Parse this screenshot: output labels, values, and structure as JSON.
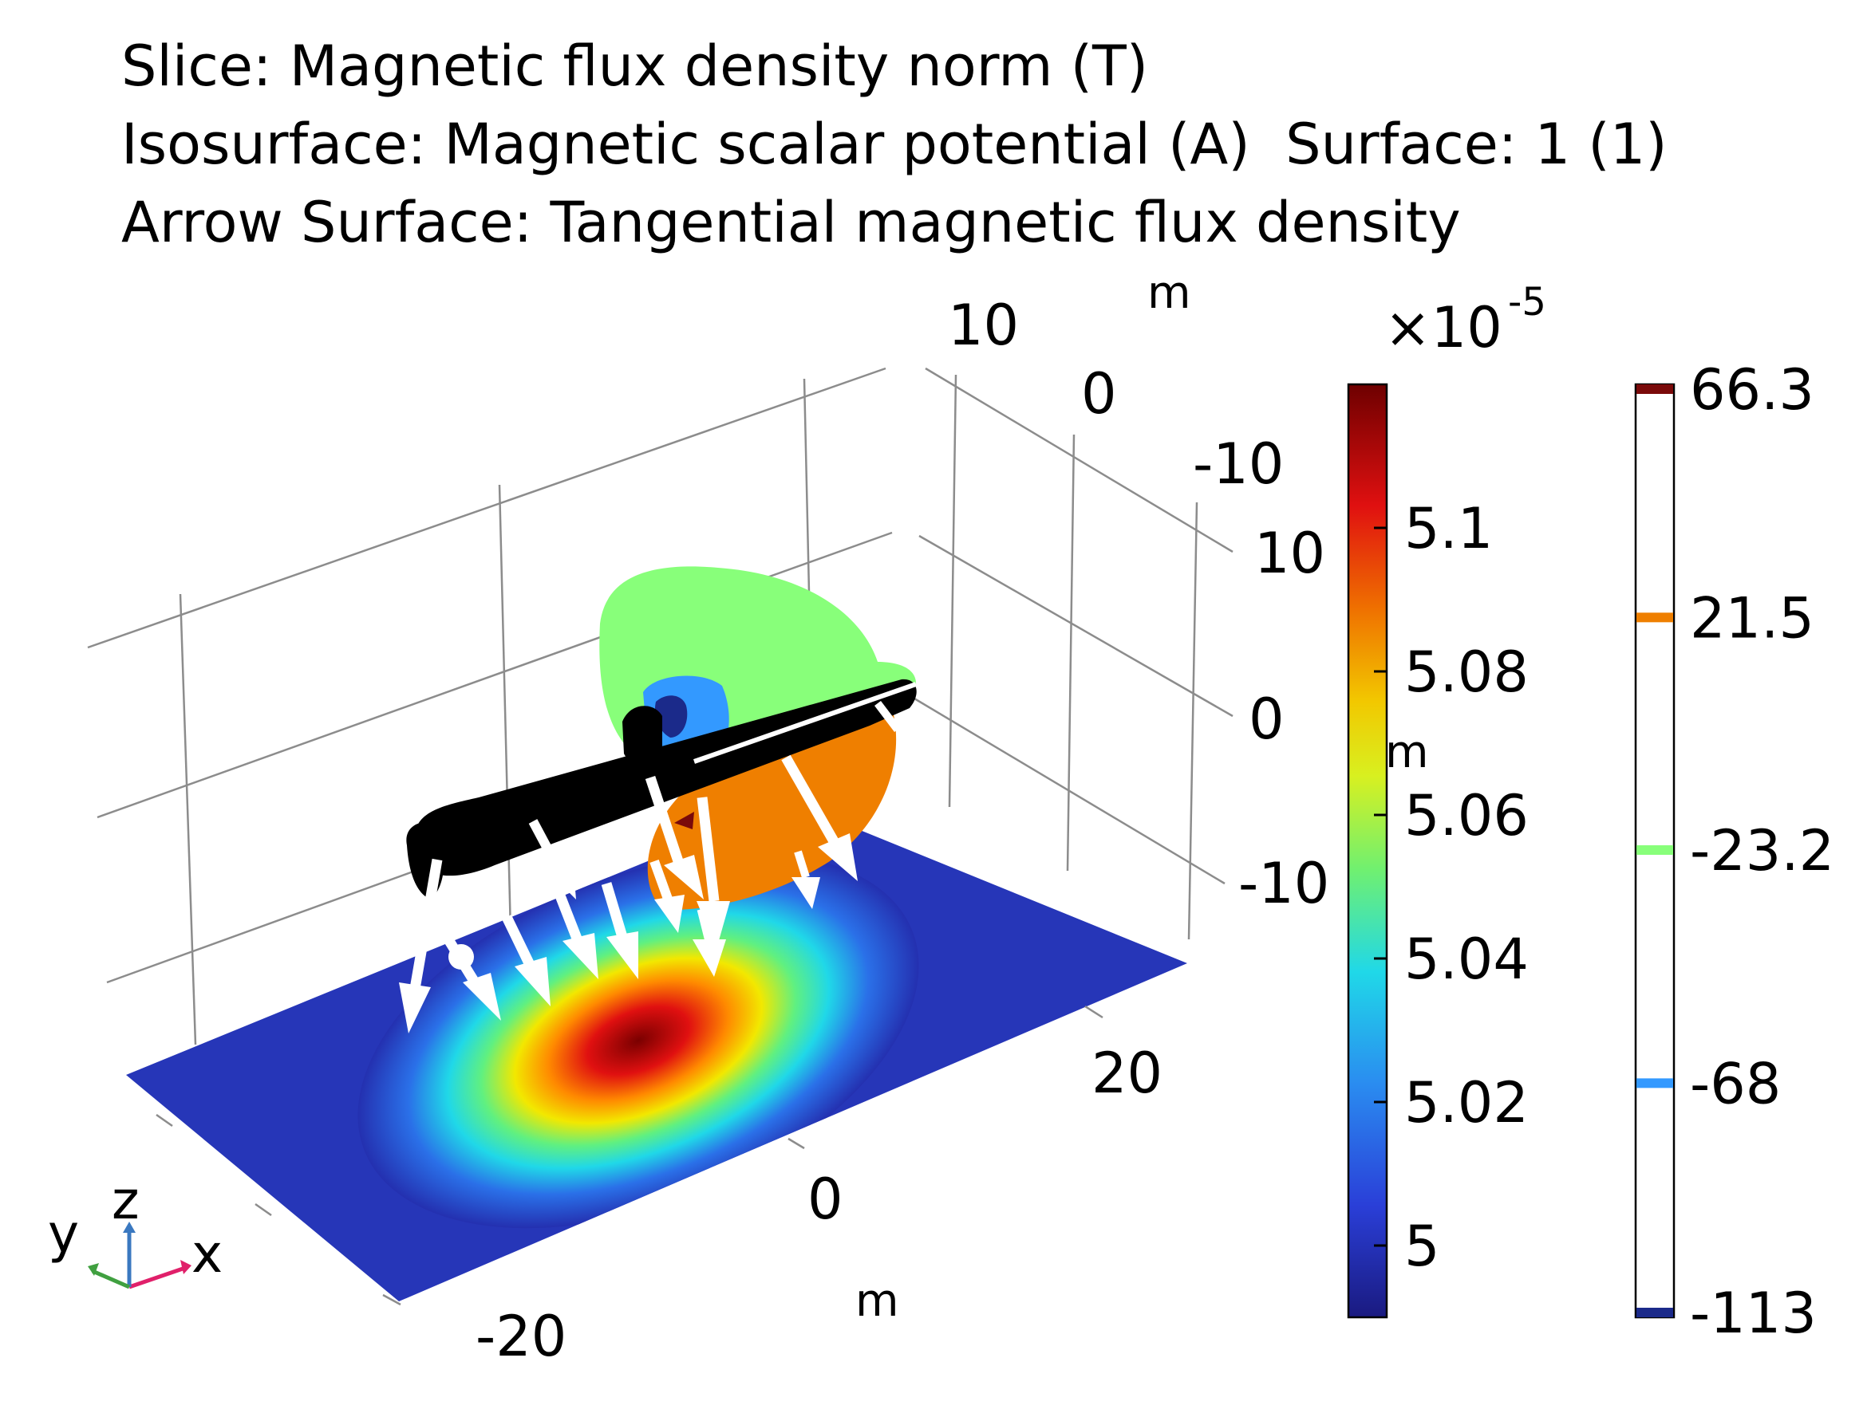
{
  "chart_data": {
    "type": "3d-slice-isosurface-arrow",
    "title_lines": [
      "Slice: Magnetic flux density norm (T)",
      "Isosurface: Magnetic scalar potential (A)  Surface: 1 (1)",
      "Arrow Surface: Tangential magnetic flux density"
    ],
    "axes": {
      "x": {
        "label": "x",
        "unit": "m",
        "ticks": [
          "-20",
          "0",
          "20"
        ]
      },
      "y": {
        "label": "y",
        "unit": "m",
        "ticks": [
          "10",
          "0",
          "-10"
        ]
      },
      "z": {
        "label": "z",
        "unit": "m",
        "ticks": [
          "10",
          "0",
          "-10"
        ]
      }
    },
    "colorbars": [
      {
        "name": "slice",
        "quantity": "Magnetic flux density norm (T)",
        "colormap": "rainbow",
        "multiplier": "×10",
        "exponent": "-5",
        "ticks": [
          "5",
          "5.02",
          "5.04",
          "5.06",
          "5.08",
          "5.1"
        ],
        "tick_values": [
          5.0,
          5.02,
          5.04,
          5.06,
          5.08,
          5.1
        ],
        "range": [
          4.99,
          5.12
        ]
      },
      {
        "name": "isosurface",
        "quantity": "Magnetic scalar potential (A)",
        "levels": [
          {
            "label": "66.3",
            "value": 66.3,
            "color": "#7a0a0a"
          },
          {
            "label": "21.5",
            "value": 21.5,
            "color": "#ef7f00"
          },
          {
            "label": "-23.2",
            "value": -23.2,
            "color": "#88ff7a"
          },
          {
            "label": "-68",
            "value": -68,
            "color": "#3399ff"
          },
          {
            "label": "-113",
            "value": -113,
            "color": "#1b2a8a"
          }
        ],
        "range": [
          -113,
          66.3
        ]
      }
    ],
    "colors": {
      "submarine": "#000000",
      "arrows": "#ffffff",
      "grid": "#8c8c8c"
    }
  }
}
